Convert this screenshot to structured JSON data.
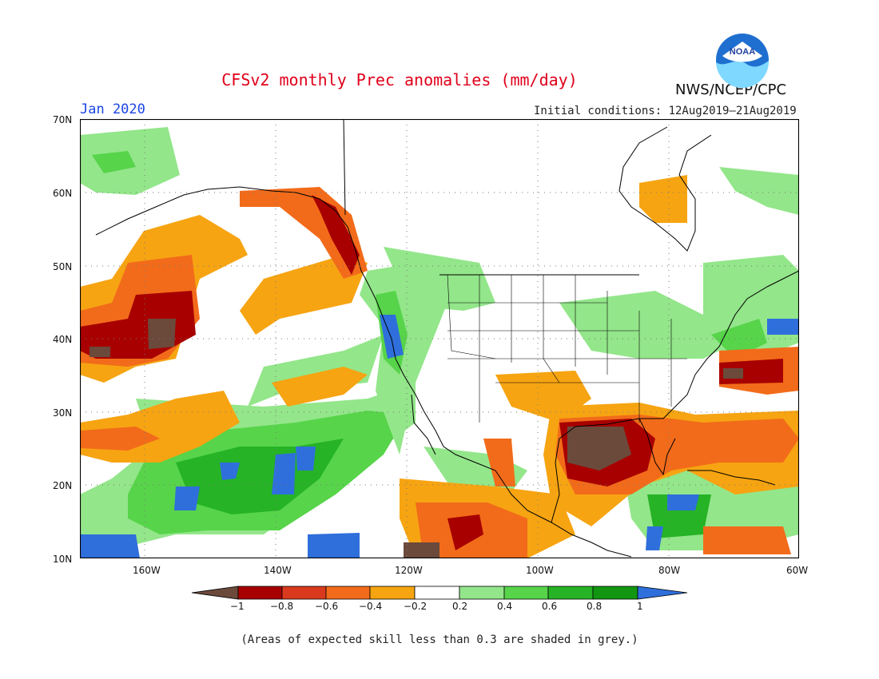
{
  "header": {
    "title": "CFSv2 monthly Prec anomalies (mm/day)",
    "month": "Jan 2020",
    "initial_conditions": "Initial conditions: 12Aug2019–21Aug2019",
    "agency": "NWS/NCEP/CPC",
    "logo_text": "NOAA"
  },
  "map": {
    "lat_labels": [
      "70N",
      "60N",
      "50N",
      "40N",
      "30N",
      "20N",
      "10N"
    ],
    "lon_labels": [
      "160W",
      "140W",
      "120W",
      "100W",
      "80W",
      "60W"
    ],
    "palette": {
      "lt_-1": "#6b4a3c",
      "-1_-0.8": "#a80000",
      "-0.8_-0.6": "#d93a1e",
      "-0.6_-0.4": "#f26b1a",
      "-0.4_-0.2": "#f6a412",
      "-0.2_0.2": "#ffffff",
      "0.2_0.4": "#93e68a",
      "0.4_0.6": "#57d44a",
      "0.6_0.8": "#26b326",
      "0.8_1": "#129612",
      "gt_1": "#2f6fdc"
    }
  },
  "colorbar": {
    "labels": [
      "−1",
      "−0.8",
      "−0.6",
      "−0.4",
      "−0.2",
      "0.2",
      "0.4",
      "0.6",
      "0.8",
      "1"
    ]
  },
  "footnote": "(Areas of expected skill less than 0.3 are shaded in grey.)"
}
